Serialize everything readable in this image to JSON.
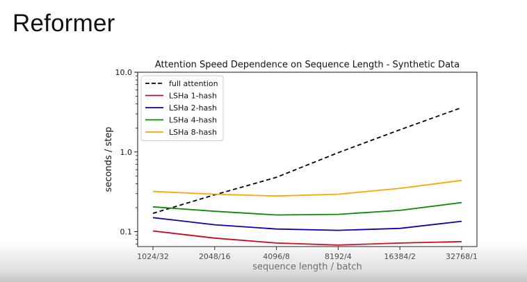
{
  "slide": {
    "title": "Reformer"
  },
  "chart_data": {
    "type": "line",
    "title": "Attention Speed Dependence on Sequence Length - Synthetic Data",
    "xlabel": "sequence length / batch",
    "ylabel": "seconds / step",
    "yscale": "log",
    "ylim": [
      0.065,
      10.0
    ],
    "ytick_values": [
      0.1,
      1.0,
      10.0
    ],
    "ytick_labels": [
      "0.1",
      "1.0",
      "10.0"
    ],
    "categories": [
      "1024/32",
      "2048/16",
      "4096/8",
      "8192/4",
      "16384/2",
      "32768/1"
    ],
    "legend_position": "upper-left",
    "grid": false,
    "series": [
      {
        "name": "full attention",
        "color": "#000000",
        "dash": true,
        "values": [
          0.17,
          0.29,
          0.48,
          0.98,
          1.9,
          3.6
        ]
      },
      {
        "name": "LSHa 1-hash",
        "color": "#d0021b",
        "dash": false,
        "values": [
          0.102,
          0.083,
          0.072,
          0.068,
          0.072,
          0.075
        ]
      },
      {
        "name": "LSHa 2-hash",
        "color": "#0a00b4",
        "dash": false,
        "values": [
          0.15,
          0.122,
          0.108,
          0.104,
          0.11,
          0.135
        ]
      },
      {
        "name": "LSHa 4-hash",
        "color": "#0a8a0a",
        "dash": false,
        "values": [
          0.205,
          0.18,
          0.162,
          0.165,
          0.185,
          0.232
        ]
      },
      {
        "name": "LSHa 8-hash",
        "color": "#ffa500",
        "dash": false,
        "values": [
          0.32,
          0.295,
          0.28,
          0.295,
          0.35,
          0.44
        ]
      }
    ]
  }
}
